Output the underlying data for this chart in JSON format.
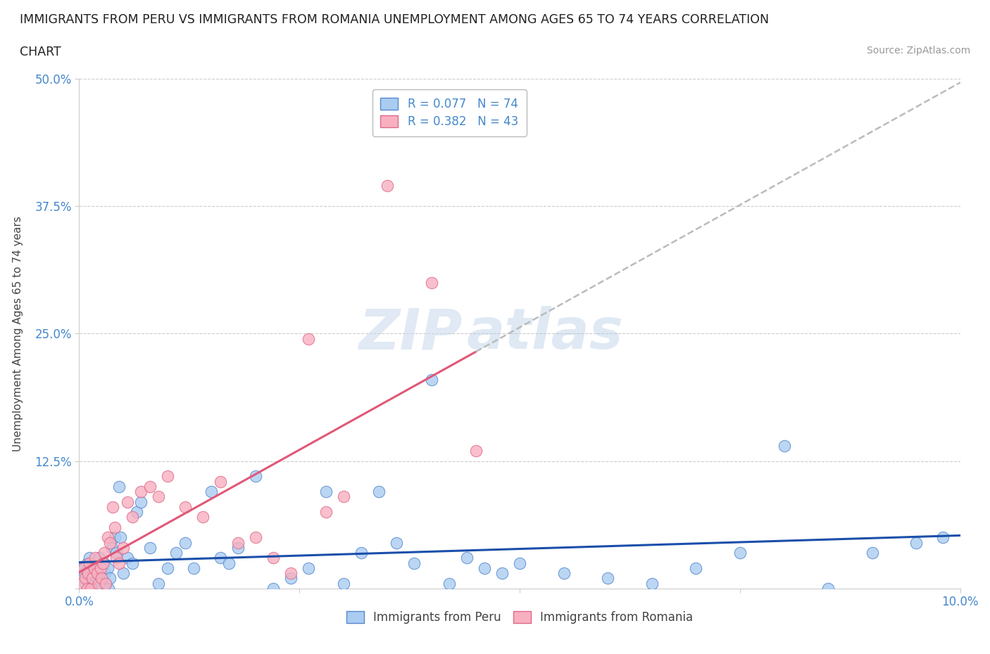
{
  "title_line1": "IMMIGRANTS FROM PERU VS IMMIGRANTS FROM ROMANIA UNEMPLOYMENT AMONG AGES 65 TO 74 YEARS CORRELATION",
  "title_line2": "CHART",
  "source_text": "Source: ZipAtlas.com",
  "ylabel": "Unemployment Among Ages 65 to 74 years",
  "xlim": [
    0.0,
    10.0
  ],
  "ylim": [
    0.0,
    50.0
  ],
  "x_ticks": [
    0.0,
    2.5,
    5.0,
    7.5,
    10.0
  ],
  "y_ticks": [
    0.0,
    12.5,
    25.0,
    37.5,
    50.0
  ],
  "grid_color": "#cccccc",
  "background_color": "#ffffff",
  "watermark_zip": "ZIP",
  "watermark_atlas": "atlas",
  "peru_color": "#aaccf0",
  "peru_edge_color": "#5588cc",
  "romania_color": "#f8b0c0",
  "romania_edge_color": "#e06888",
  "peru_line_color": "#1a4faa",
  "romania_line_color": "#e05878",
  "dash_color": "#bbbbbb",
  "peru_R": 0.077,
  "peru_N": 74,
  "romania_R": 0.382,
  "romania_N": 43,
  "tick_color": "#4488cc",
  "title_color": "#222222",
  "source_color": "#999999",
  "ylabel_color": "#444444",
  "peru_x": [
    0.04,
    0.06,
    0.07,
    0.09,
    0.1,
    0.11,
    0.12,
    0.13,
    0.14,
    0.15,
    0.16,
    0.17,
    0.18,
    0.19,
    0.2,
    0.21,
    0.22,
    0.23,
    0.24,
    0.25,
    0.26,
    0.27,
    0.28,
    0.29,
    0.3,
    0.32,
    0.33,
    0.35,
    0.37,
    0.4,
    0.42,
    0.45,
    0.47,
    0.5,
    0.55,
    0.6,
    0.65,
    0.7,
    0.8,
    0.9,
    1.0,
    1.1,
    1.2,
    1.3,
    1.5,
    1.6,
    1.7,
    1.8,
    2.0,
    2.2,
    2.4,
    2.6,
    2.8,
    3.0,
    3.2,
    3.4,
    3.6,
    3.8,
    4.0,
    4.2,
    4.4,
    4.6,
    4.8,
    5.0,
    5.5,
    6.0,
    6.5,
    7.0,
    7.5,
    8.0,
    8.5,
    9.0,
    9.5,
    9.8
  ],
  "peru_y": [
    2.0,
    1.5,
    0.5,
    2.5,
    1.0,
    0.0,
    3.0,
    2.0,
    1.0,
    0.0,
    1.5,
    2.0,
    0.5,
    2.5,
    1.0,
    0.0,
    1.5,
    3.0,
    2.0,
    0.5,
    1.0,
    0.0,
    2.5,
    1.5,
    0.5,
    2.0,
    0.0,
    1.0,
    4.0,
    5.0,
    3.5,
    10.0,
    5.0,
    1.5,
    3.0,
    2.5,
    7.5,
    8.5,
    4.0,
    0.5,
    2.0,
    3.5,
    4.5,
    2.0,
    9.5,
    3.0,
    2.5,
    4.0,
    11.0,
    0.0,
    1.0,
    2.0,
    9.5,
    0.5,
    3.5,
    9.5,
    4.5,
    2.5,
    20.5,
    0.5,
    3.0,
    2.0,
    1.5,
    2.5,
    1.5,
    1.0,
    0.5,
    2.0,
    3.5,
    14.0,
    0.0,
    3.5,
    4.5,
    5.0
  ],
  "romania_x": [
    0.03,
    0.05,
    0.07,
    0.09,
    0.1,
    0.12,
    0.13,
    0.15,
    0.17,
    0.18,
    0.2,
    0.22,
    0.24,
    0.25,
    0.27,
    0.28,
    0.3,
    0.32,
    0.35,
    0.38,
    0.4,
    0.42,
    0.45,
    0.5,
    0.55,
    0.6,
    0.7,
    0.8,
    0.9,
    1.0,
    1.2,
    1.4,
    1.6,
    1.8,
    2.0,
    2.2,
    2.4,
    2.6,
    2.8,
    3.0,
    3.5,
    4.0,
    4.5
  ],
  "romania_y": [
    0.5,
    2.0,
    1.0,
    0.0,
    1.5,
    2.5,
    0.0,
    1.0,
    2.0,
    3.0,
    1.5,
    0.5,
    2.0,
    1.0,
    2.5,
    3.5,
    0.5,
    5.0,
    4.5,
    8.0,
    6.0,
    3.0,
    2.5,
    4.0,
    8.5,
    7.0,
    9.5,
    10.0,
    9.0,
    11.0,
    8.0,
    7.0,
    10.5,
    4.5,
    5.0,
    3.0,
    1.5,
    24.5,
    7.5,
    9.0,
    39.5,
    30.0,
    13.5
  ]
}
